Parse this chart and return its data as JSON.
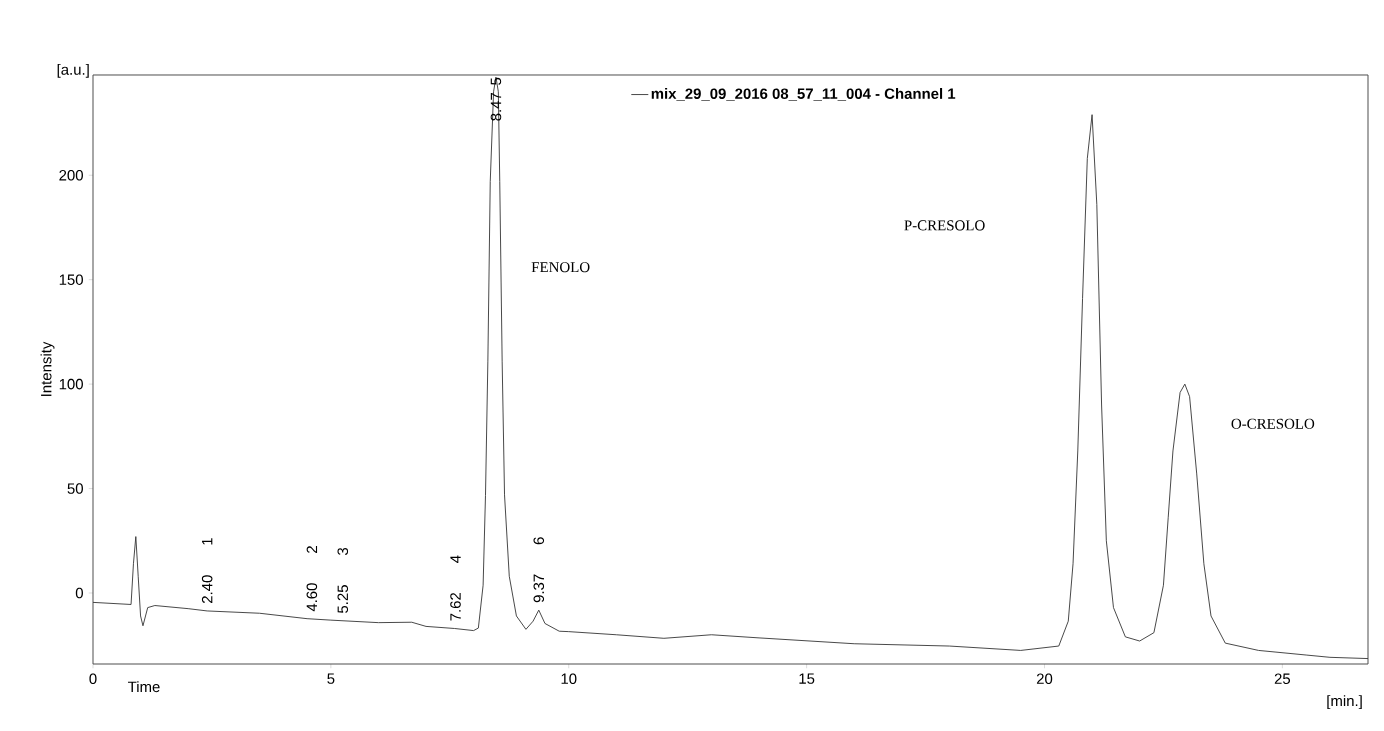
{
  "chart_data": {
    "type": "line",
    "xlabel": "Time",
    "ylabel": "Intensity",
    "xlim": [
      0,
      26.8
    ],
    "ylim": [
      -34,
      248
    ],
    "xticks": [
      0,
      5,
      10,
      15,
      20,
      25
    ],
    "yticks": [
      0,
      50,
      100,
      150,
      200
    ],
    "grid": false,
    "legend": "top",
    "marker": "none",
    "line_style": "solid",
    "series": [
      {
        "name": "mix_29_09_2016 08_57_11_004 - Channel 1",
        "color": "#333333",
        "x": [
          0,
          0.8,
          0.85,
          0.9,
          0.95,
          1.0,
          1.05,
          1.15,
          1.3,
          2.0,
          2.4,
          3.5,
          4.5,
          5.0,
          6.0,
          6.7,
          7.0,
          7.6,
          8.0,
          8.1,
          8.2,
          8.25,
          8.3,
          8.35,
          8.42,
          8.47,
          8.52,
          8.55,
          8.6,
          8.65,
          8.75,
          8.9,
          9.1,
          9.25,
          9.37,
          9.5,
          9.8,
          10,
          11,
          12,
          13,
          14,
          16,
          18,
          19.5,
          20.3,
          20.5,
          20.6,
          20.7,
          20.8,
          20.9,
          21.0,
          21.1,
          21.2,
          21.3,
          21.45,
          21.7,
          22.0,
          22.3,
          22.5,
          22.6,
          22.7,
          22.85,
          22.95,
          23.05,
          23.2,
          23.35,
          23.5,
          23.8,
          24.5,
          25.5,
          26,
          26.8
        ],
        "values": [
          -4.5,
          -5.5,
          14,
          27,
          8,
          -11,
          -15.7,
          -7,
          -6,
          -7.5,
          -8.6,
          -9.7,
          -12.3,
          -13,
          -14.2,
          -14,
          -16,
          -17,
          -18,
          -16.8,
          3.7,
          46.7,
          111,
          197,
          240,
          247,
          240,
          197,
          111,
          47,
          8,
          -11,
          -17.4,
          -13.5,
          -8.2,
          -14.6,
          -18.3,
          -18.5,
          -20,
          -21.7,
          -20,
          -21.5,
          -24.3,
          -25.4,
          -27.5,
          -25.4,
          -13.5,
          14,
          68,
          141,
          208,
          229,
          186,
          90,
          25,
          -7,
          -21,
          -23,
          -19,
          3.7,
          36,
          68,
          96,
          100,
          94,
          57,
          14,
          -11,
          -24,
          -27.5,
          -29.7,
          -30.8,
          -31.4
        ]
      }
    ],
    "annotations": [
      "[a.u.]",
      "[min.]",
      {
        "text": "2.40",
        "x": 2.4,
        "y": -8.6
      },
      "1",
      {
        "text": "4.60",
        "x": 4.6,
        "y": -12.4
      },
      "2",
      {
        "text": "5.25",
        "x": 5.25,
        "y": -13.3
      },
      "3",
      {
        "text": "7.62",
        "x": 7.62,
        "y": -17
      },
      "4",
      {
        "text": "8.47",
        "x": 8.47,
        "y": 247
      },
      "5",
      {
        "text": "9.37",
        "x": 9.37,
        "y": -8.2
      },
      "6",
      "FENOLO",
      "P-CRESOLO",
      "O-CRESOLO"
    ]
  }
}
